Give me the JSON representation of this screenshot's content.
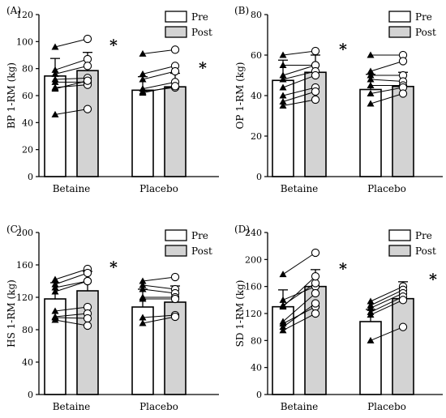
{
  "chart_data": [
    {
      "type": "bar",
      "panel_label": "(A)",
      "ylabel": "BP 1-RM (kg)",
      "ylim": [
        0,
        120
      ],
      "yticks": [
        0,
        20,
        40,
        60,
        80,
        100,
        120
      ],
      "categories": [
        "Betaine",
        "Placebo"
      ],
      "legend": [
        "Pre",
        "Post"
      ],
      "series": [
        {
          "name": "Pre",
          "values": [
            74.5,
            64
          ],
          "sd": [
            13,
            10
          ]
        },
        {
          "name": "Post",
          "values": [
            78.5,
            66.5
          ],
          "sd": [
            13.5,
            10
          ]
        }
      ],
      "individuals": [
        {
          "category": "Betaine",
          "pairs": [
            [
              96,
              102
            ],
            [
              79,
              87
            ],
            [
              76,
              82
            ],
            [
              72,
              73
            ],
            [
              70,
              70
            ],
            [
              66,
              68
            ],
            [
              65,
              71
            ],
            [
              46,
              50
            ]
          ]
        },
        {
          "category": "Placebo",
          "pairs": [
            [
              91,
              94
            ],
            [
              76,
              82
            ],
            [
              72,
              78
            ],
            [
              65,
              70
            ],
            [
              63,
              66
            ],
            [
              62,
              67
            ]
          ]
        }
      ],
      "significance": [
        "*",
        "*"
      ]
    },
    {
      "type": "bar",
      "panel_label": "(B)",
      "ylabel": "OP 1-RM (kg)",
      "ylim": [
        0,
        80
      ],
      "yticks": [
        0,
        20,
        40,
        60,
        80
      ],
      "categories": [
        "Betaine",
        "Placebo"
      ],
      "legend": [
        "Pre",
        "Post"
      ],
      "series": [
        {
          "name": "Pre",
          "values": [
            47.5,
            43
          ],
          "sd": [
            10,
            7.5
          ]
        },
        {
          "name": "Post",
          "values": [
            51.5,
            44.5
          ],
          "sd": [
            8.5,
            7
          ]
        }
      ],
      "individuals": [
        {
          "category": "Betaine",
          "pairs": [
            [
              60,
              62
            ],
            [
              55,
              55
            ],
            [
              50,
              55
            ],
            [
              48,
              52
            ],
            [
              44,
              50
            ],
            [
              40,
              44
            ],
            [
              37,
              42
            ],
            [
              35,
              38
            ]
          ]
        },
        {
          "category": "Placebo",
          "pairs": [
            [
              60,
              60
            ],
            [
              52,
              57
            ],
            [
              50,
              50
            ],
            [
              48,
              47
            ],
            [
              45,
              45
            ],
            [
              41,
              44
            ],
            [
              36,
              41
            ]
          ]
        }
      ],
      "significance": [
        "*"
      ]
    },
    {
      "type": "bar",
      "panel_label": "(C)",
      "ylabel": "HS 1-RM (kg)",
      "ylim": [
        0,
        200
      ],
      "yticks": [
        0,
        40,
        80,
        120,
        160,
        200
      ],
      "categories": [
        "Betaine",
        "Placebo"
      ],
      "legend": [
        "Pre",
        "Post"
      ],
      "series": [
        {
          "name": "Pre",
          "values": [
            118,
            108
          ],
          "sd": [
            20,
            22
          ]
        },
        {
          "name": "Post",
          "values": [
            128,
            114
          ],
          "sd": [
            24,
            20
          ]
        }
      ],
      "individuals": [
        {
          "category": "Betaine",
          "pairs": [
            [
              142,
              155
            ],
            [
              136,
              150
            ],
            [
              132,
              140
            ],
            [
              127,
              140
            ],
            [
              103,
              108
            ],
            [
              96,
              100
            ],
            [
              95,
              94
            ],
            [
              92,
              85
            ]
          ]
        },
        {
          "category": "Placebo",
          "pairs": [
            [
              140,
              145
            ],
            [
              135,
              130
            ],
            [
              130,
              125
            ],
            [
              120,
              120
            ],
            [
              118,
              118
            ],
            [
              95,
              98
            ],
            [
              88,
              96
            ]
          ]
        }
      ],
      "significance": [
        "*"
      ]
    },
    {
      "type": "bar",
      "panel_label": "(D)",
      "ylabel": "SD 1-RM (kg)",
      "ylim": [
        0,
        240
      ],
      "yticks": [
        0,
        40,
        80,
        120,
        160,
        200,
        240
      ],
      "categories": [
        "Betaine",
        "Placebo"
      ],
      "legend": [
        "Pre",
        "Post"
      ],
      "series": [
        {
          "name": "Pre",
          "values": [
            130,
            108
          ],
          "sd": [
            25,
            18
          ]
        },
        {
          "name": "Post",
          "values": [
            160,
            142
          ],
          "sd": [
            25,
            25
          ]
        }
      ],
      "individuals": [
        {
          "category": "Betaine",
          "pairs": [
            [
              178,
              210
            ],
            [
              140,
              160
            ],
            [
              132,
              165
            ],
            [
              130,
              175
            ],
            [
              108,
              150
            ],
            [
              105,
              130
            ],
            [
              100,
              135
            ],
            [
              95,
              120
            ]
          ]
        },
        {
          "category": "Placebo",
          "pairs": [
            [
              138,
              160
            ],
            [
              132,
              155
            ],
            [
              128,
              150
            ],
            [
              122,
              145
            ],
            [
              118,
              140
            ],
            [
              80,
              100
            ]
          ]
        }
      ],
      "significance": [
        "*",
        "*"
      ]
    }
  ]
}
